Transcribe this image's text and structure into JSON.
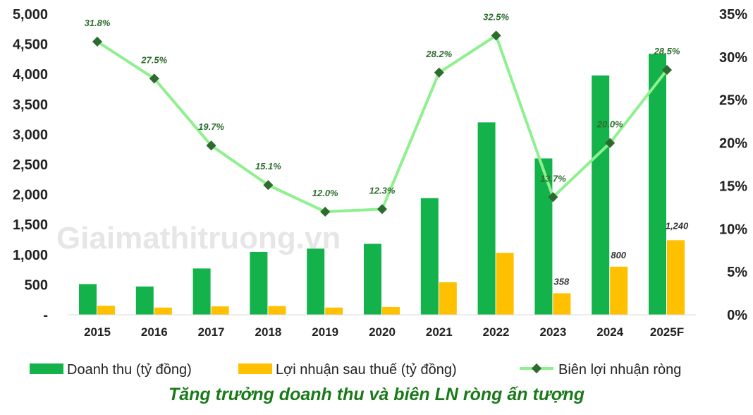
{
  "chart_data": {
    "type": "bar",
    "title": "Tăng trưởng doanh thu và biên LN ròng ấn tượng",
    "watermark": "Giaimathitruong.vn",
    "categories": [
      "2015",
      "2016",
      "2017",
      "2018",
      "2019",
      "2020",
      "2021",
      "2022",
      "2023",
      "2024",
      "2025F"
    ],
    "y_left": {
      "range": [
        0,
        5000
      ],
      "ticks": [
        "-",
        "500",
        "1,000",
        "1,500",
        "2,000",
        "2,500",
        "3,000",
        "3,500",
        "4,000",
        "4,500",
        "5,000"
      ]
    },
    "y_right": {
      "range": [
        0,
        35
      ],
      "ticks": [
        "0%",
        "5%",
        "10%",
        "15%",
        "20%",
        "25%",
        "30%",
        "35%"
      ]
    },
    "grid": false,
    "legend_placement": "bottom",
    "series": [
      {
        "name": "Doanh thu (tỷ đồng)",
        "type": "bar",
        "axis": "left",
        "color": "#14b24b",
        "values": [
          510,
          470,
          770,
          1045,
          1100,
          1180,
          1940,
          3200,
          2600,
          3980,
          4340
        ]
      },
      {
        "name": "Lợi nhuận sau thuế (tỷ đồng)",
        "type": "bar",
        "axis": "left",
        "color": "#ffc000",
        "values": [
          150,
          120,
          140,
          145,
          120,
          130,
          540,
          1030,
          358,
          800,
          1240
        ],
        "data_labels": [
          "",
          "",
          "",
          "",
          "",
          "",
          "",
          "",
          "358",
          "800",
          "1,240"
        ]
      },
      {
        "name": "Biên lợi nhuận ròng",
        "type": "line",
        "axis": "right",
        "color": "#8ef08e",
        "marker_color": "#2e6b2e",
        "values": [
          31.8,
          27.5,
          19.7,
          15.1,
          12.0,
          12.3,
          28.2,
          32.5,
          13.7,
          20.0,
          28.5
        ],
        "data_labels": [
          "31.8%",
          "27.5%",
          "19.7%",
          "15.1%",
          "12.0%",
          "12.3%",
          "28.2%",
          "32.5%",
          "13.7%",
          "20.0%",
          "28.5%"
        ]
      }
    ]
  }
}
